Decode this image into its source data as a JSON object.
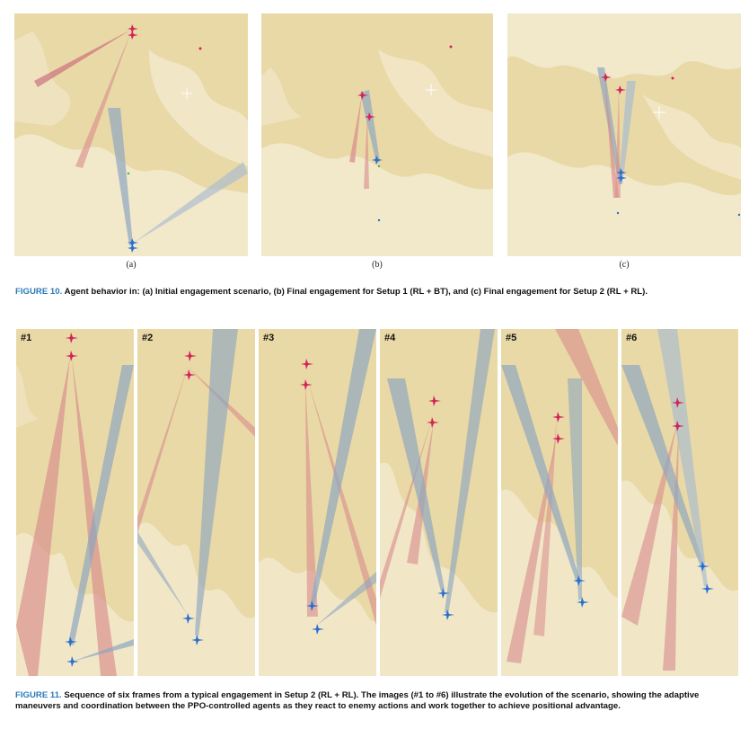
{
  "figure10": {
    "panels": [
      {
        "label": "(a)"
      },
      {
        "label": "(b)"
      },
      {
        "label": "(c)"
      }
    ],
    "caption_label": "FIGURE 10.",
    "caption_text": "Agent behavior in: (a) Initial engagement scenario, (b) Final engagement for Setup 1 (RL + BT), and (c) Final engagement for Setup 2 (RL + RL)."
  },
  "figure11": {
    "frames": [
      {
        "label": "#1"
      },
      {
        "label": "#2"
      },
      {
        "label": "#3"
      },
      {
        "label": "#4"
      },
      {
        "label": "#5"
      },
      {
        "label": "#6"
      }
    ],
    "caption_label": "FIGURE 11.",
    "caption_text": "Sequence of six frames from a typical engagement in Setup 2 (RL + RL). The images (#1 to #6) illustrate the evolution of the scenario, showing the adaptive maneuvers and coordination between the PPO-controlled agents as they react to enemy actions and work together to achieve positional advantage."
  },
  "colors": {
    "terrain": "#e9d9a6",
    "terrain_light": "#f3ead0",
    "red_agent": "#d2245a",
    "blue_agent": "#2a6fd0",
    "red_cone": "#d98a8c",
    "blue_cone": "#8fa6c0"
  }
}
